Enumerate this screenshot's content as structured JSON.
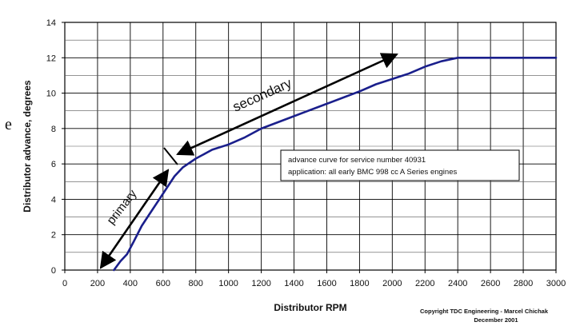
{
  "chart_data": {
    "type": "line",
    "xlabel": "Distributor RPM",
    "ylabel": "Distributor advance, degrees",
    "xlim": [
      0,
      3000
    ],
    "ylim": [
      0,
      14
    ],
    "x_ticks": [
      "0",
      "200",
      "400",
      "600",
      "800",
      "1000",
      "1200",
      "1400",
      "1600",
      "1800",
      "2000",
      "2200",
      "2400",
      "2600",
      "2800",
      "3000"
    ],
    "y_ticks": [
      "0",
      "2",
      "4",
      "6",
      "8",
      "10",
      "12",
      "14"
    ],
    "grid": true,
    "series": [
      {
        "color": "#1a1f8c",
        "points": [
          [
            300,
            0
          ],
          [
            340,
            0.5
          ],
          [
            380,
            0.9
          ],
          [
            420,
            1.6
          ],
          [
            470,
            2.5
          ],
          [
            520,
            3.2
          ],
          [
            570,
            3.9
          ],
          [
            620,
            4.6
          ],
          [
            670,
            5.3
          ],
          [
            720,
            5.8
          ],
          [
            800,
            6.3
          ],
          [
            900,
            6.8
          ],
          [
            1000,
            7.1
          ],
          [
            1100,
            7.5
          ],
          [
            1200,
            8.0
          ],
          [
            1400,
            8.7
          ],
          [
            1600,
            9.4
          ],
          [
            1800,
            10.1
          ],
          [
            1900,
            10.5
          ],
          [
            2000,
            10.8
          ],
          [
            2100,
            11.1
          ],
          [
            2200,
            11.5
          ],
          [
            2300,
            11.8
          ],
          [
            2400,
            12.0
          ],
          [
            2600,
            12.0
          ],
          [
            2800,
            12.0
          ],
          [
            3000,
            12.0
          ]
        ]
      }
    ],
    "annotations": {
      "primary": "primary",
      "secondary": "secondary",
      "note_line1": "advance curve for service number 40931",
      "note_line2": "application: all early BMC 998 cc A Series engines",
      "copyright_line1": "Copyright TDC Engineering - Marcel Chichak",
      "copyright_line2": "December 2001"
    },
    "stray_glyph": "e"
  }
}
